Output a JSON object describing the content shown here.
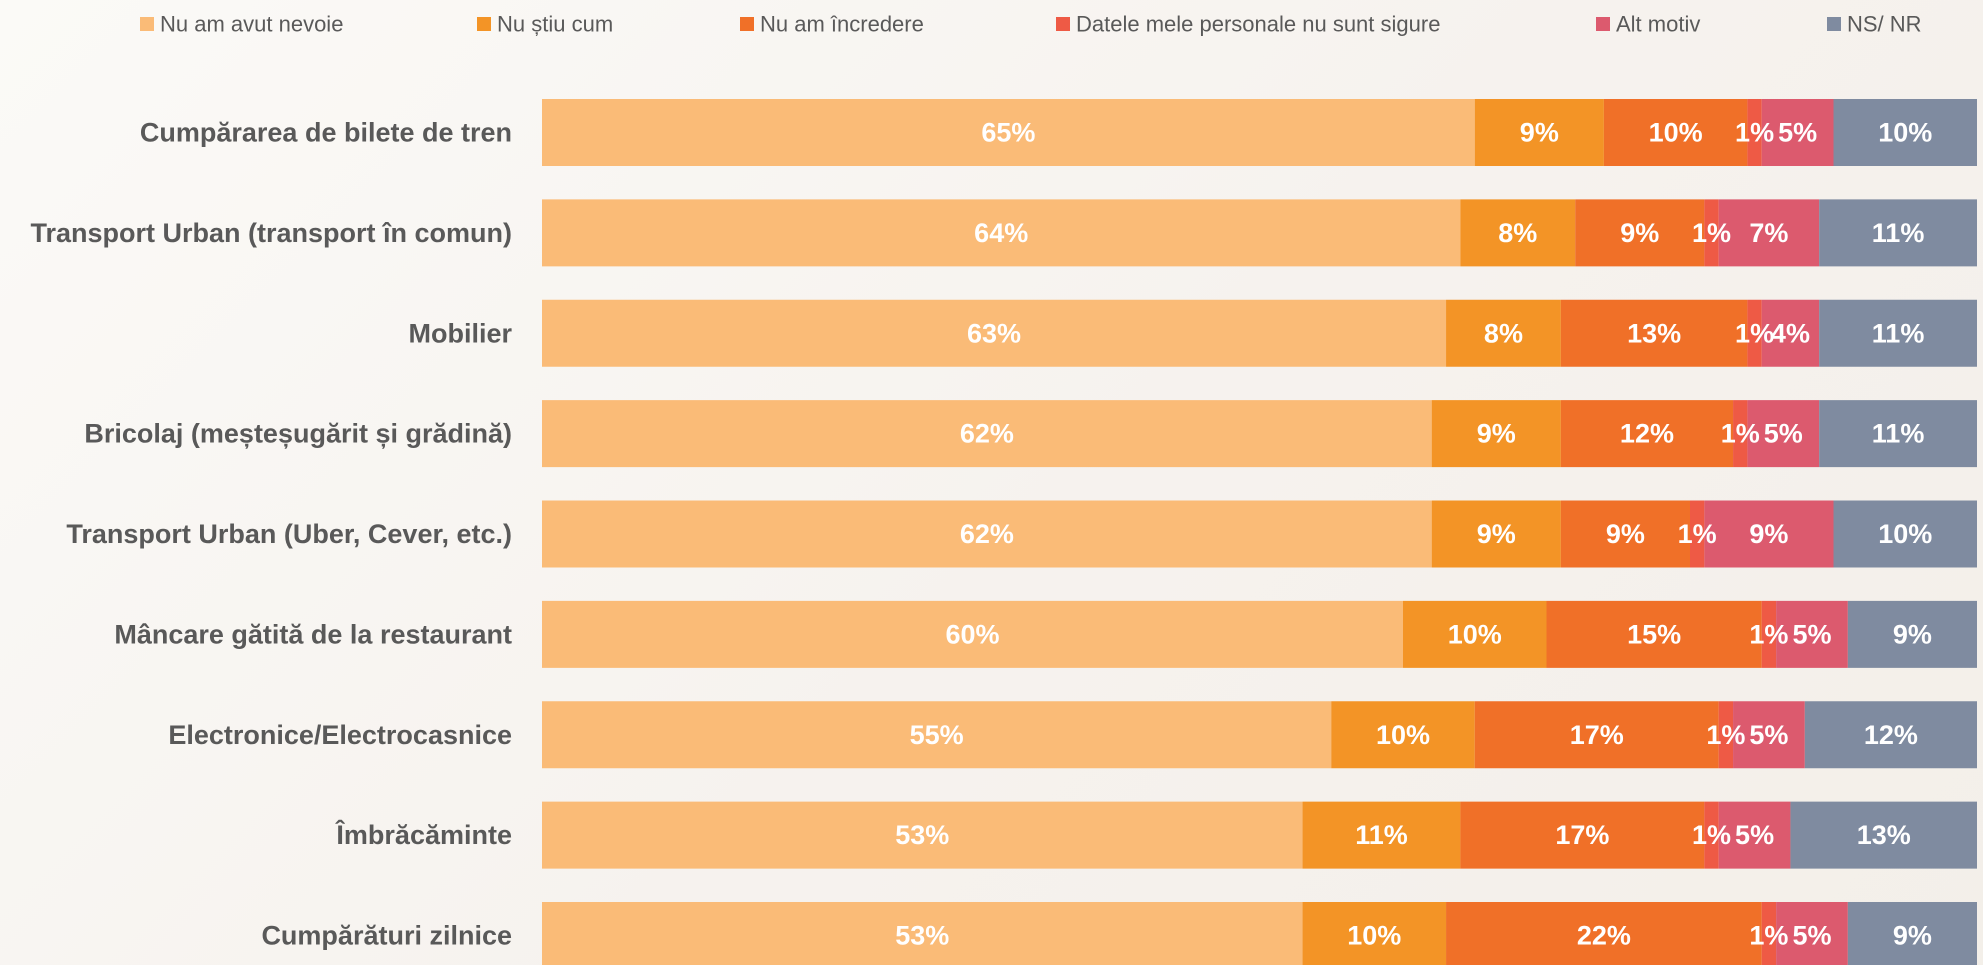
{
  "chart_data": {
    "type": "bar",
    "orientation": "horizontal",
    "stacked": true,
    "categories": [
      "Cumpărarea de bilete de tren",
      "Transport Urban (transport în comun)",
      "Mobilier",
      "Bricolaj (meșteșugărit și grădină)",
      "Transport Urban (Uber, Cever, etc.)",
      "Mâncare gătită de la restaurant",
      "Electronice/Electrocasnice",
      "Îmbrăcăminte",
      "Cumpărături zilnice"
    ],
    "series": [
      {
        "name": "Nu am avut nevoie",
        "color": "#fabb77",
        "values": [
          65,
          64,
          63,
          62,
          62,
          60,
          55,
          53,
          53
        ],
        "labels": [
          "65%",
          "64%",
          "63%",
          "62%",
          "62%",
          "60%",
          "55%",
          "53%",
          "53%"
        ]
      },
      {
        "name": "Nu știu cum",
        "color": "#f39426",
        "values": [
          9,
          8,
          8,
          9,
          9,
          10,
          10,
          11,
          10
        ],
        "labels": [
          "9%",
          "8%",
          "8%",
          "9%",
          "9%",
          "10%",
          "10%",
          "11%",
          "10%"
        ]
      },
      {
        "name": "Nu am încredere",
        "color": "#f07028",
        "values": [
          10,
          9,
          13,
          12,
          9,
          15,
          17,
          17,
          22
        ],
        "labels": [
          "10%",
          "9%",
          "13%",
          "12%",
          "9%",
          "15%",
          "17%",
          "17%",
          "22%"
        ]
      },
      {
        "name": "Datele mele personale nu sunt sigure",
        "color": "#ee5a45",
        "values": [
          1,
          1,
          1,
          1,
          1,
          1,
          1,
          1,
          1
        ],
        "labels": [
          "1%",
          "1%",
          "1%",
          "1%",
          "1%",
          "1%",
          "1%",
          "1%",
          "1%"
        ]
      },
      {
        "name": "Alt motiv",
        "color": "#dc5a6e",
        "values": [
          5,
          7,
          4,
          5,
          9,
          5,
          5,
          5,
          5
        ],
        "labels": [
          "5%",
          "7%",
          "4%",
          "5%",
          "9%",
          "5%",
          "5%",
          "5%",
          "5%"
        ]
      },
      {
        "name": "NS/ NR",
        "color": "#7f8ba0",
        "values": [
          10,
          11,
          11,
          11,
          10,
          9,
          12,
          13,
          9
        ],
        "labels": [
          "10%",
          "11%",
          "11%",
          "11%",
          "10%",
          "9%",
          "12%",
          "13%",
          "9%"
        ]
      }
    ],
    "xlim": [
      0,
      100
    ],
    "legend_position": "top",
    "grid": false
  }
}
